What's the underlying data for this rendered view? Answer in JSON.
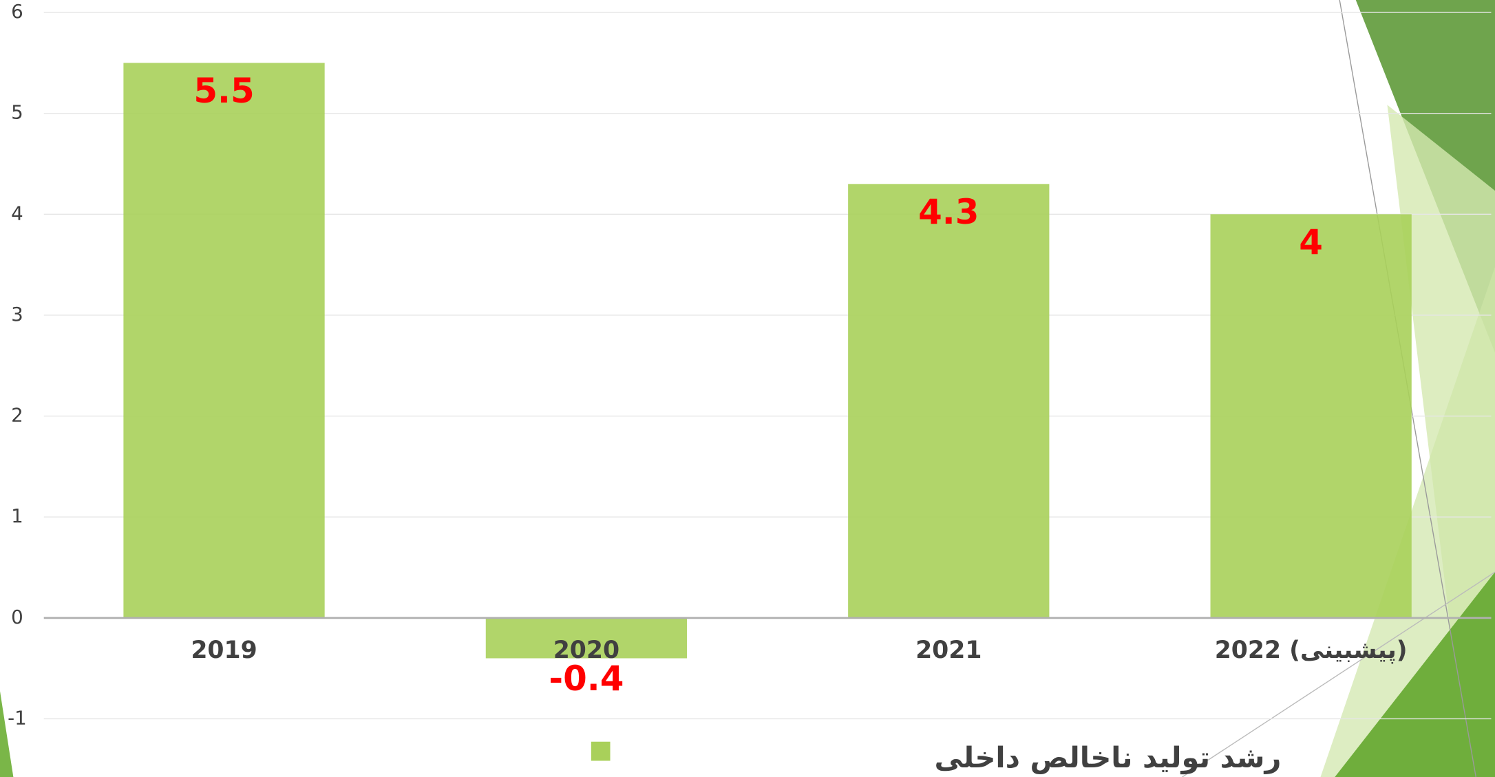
{
  "chart_data": {
    "type": "bar",
    "categories": [
      "2019",
      "2020",
      "2021",
      "2022 (پیشبینی)"
    ],
    "series": [
      {
        "name": "رشد تولید ناخالص داخلی",
        "color": "#a9d05a",
        "values": [
          5.5,
          -0.4,
          4.3,
          4
        ]
      }
    ],
    "ylim": [
      -1,
      6
    ],
    "yticks": [
      -1,
      0,
      1,
      2,
      3,
      4,
      5,
      6
    ],
    "grid": true,
    "legend": "bottom",
    "data_labels_color": "#ff0000"
  }
}
